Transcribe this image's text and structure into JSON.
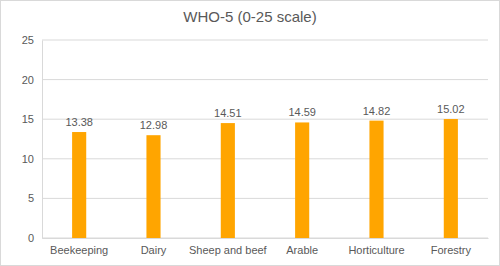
{
  "chart_data": {
    "type": "bar",
    "title": "WHO-5 (0-25 scale)",
    "categories": [
      "Beekeeping",
      "Dairy",
      "Sheep and beef",
      "Arable",
      "Horticulture",
      "Forestry"
    ],
    "values": [
      13.38,
      12.98,
      14.51,
      14.59,
      14.82,
      15.02
    ],
    "color": "#ffa500",
    "ylim": [
      0,
      25
    ],
    "yticks": [
      0,
      5,
      10,
      15,
      20,
      25
    ],
    "grid": true,
    "data_labels": true
  }
}
